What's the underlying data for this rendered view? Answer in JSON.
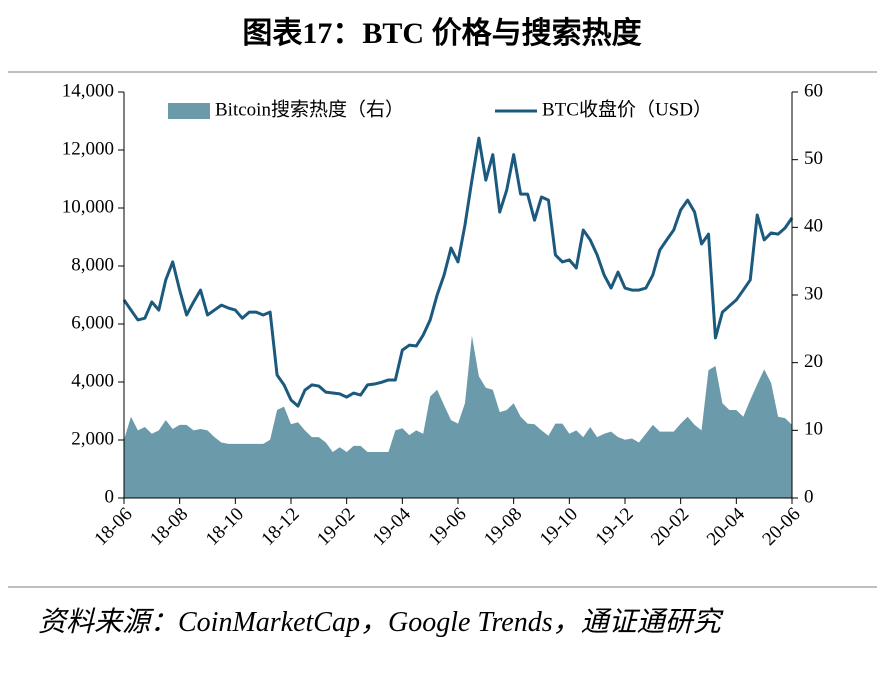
{
  "chart_data": {
    "type": "line_area",
    "title": "图表17：BTC 价格与搜索热度",
    "source": "资料来源：CoinMarketCap，Google Trends，通证通研究",
    "categories": [
      "18-06",
      null,
      null,
      null,
      null,
      null,
      null,
      null,
      "18-08",
      null,
      null,
      null,
      null,
      null,
      null,
      null,
      "18-10",
      null,
      null,
      null,
      null,
      null,
      null,
      null,
      "18-12",
      null,
      null,
      null,
      null,
      null,
      null,
      null,
      "19-02",
      null,
      null,
      null,
      null,
      null,
      null,
      null,
      "19-04",
      null,
      null,
      null,
      null,
      null,
      null,
      null,
      "19-06",
      null,
      null,
      null,
      null,
      null,
      null,
      null,
      "19-08",
      null,
      null,
      null,
      null,
      null,
      null,
      null,
      "19-10",
      null,
      null,
      null,
      null,
      null,
      null,
      null,
      "19-12",
      null,
      null,
      null,
      null,
      null,
      null,
      null,
      "20-02",
      null,
      null,
      null,
      null,
      null,
      null,
      null,
      "20-04",
      null,
      null,
      null,
      null,
      null,
      null,
      null,
      "20-06"
    ],
    "series": [
      {
        "name": "Bitcoin搜索热度（右）",
        "type": "area",
        "axis": "y2",
        "color": "#6b9aab",
        "values": [
          8.6,
          12,
          10,
          10.5,
          9.5,
          10,
          11.5,
          10.2,
          10.8,
          10.8,
          10,
          10.2,
          10,
          9,
          8.2,
          8,
          8,
          8,
          8,
          8,
          8,
          8.6,
          13,
          13.5,
          10.9,
          11.2,
          10,
          9,
          9,
          8.2,
          6.8,
          7.5,
          6.8,
          7.7,
          7.7,
          6.8,
          6.8,
          6.8,
          6.8,
          10,
          10.3,
          9.3,
          10,
          9.5,
          15,
          16,
          13.7,
          11.5,
          11,
          14,
          24,
          18,
          16.3,
          16,
          12.7,
          13,
          14,
          12,
          11,
          10.9,
          10,
          9.2,
          11,
          11,
          9.5,
          10,
          9,
          10.5,
          9,
          9.5,
          9.8,
          9,
          8.6,
          8.8,
          8.2,
          9.5,
          10.8,
          9.8,
          9.8,
          9.8,
          11,
          12,
          10.8,
          10,
          18.9,
          19.5,
          14,
          13,
          13,
          12,
          14.5,
          16.8,
          19,
          17,
          12,
          11.8,
          10.8
        ]
      },
      {
        "name": "BTC收盘价（USD）",
        "type": "line",
        "axis": "y",
        "color": "#1b5a7e",
        "values": [
          6830,
          6480,
          6140,
          6200,
          6760,
          6480,
          7520,
          8140,
          7170,
          6310,
          6760,
          7170,
          6310,
          6480,
          6650,
          6550,
          6480,
          6200,
          6410,
          6410,
          6310,
          6410,
          4240,
          3900,
          3380,
          3170,
          3720,
          3900,
          3860,
          3650,
          3620,
          3590,
          3480,
          3620,
          3550,
          3900,
          3930,
          3990,
          4070,
          4070,
          5100,
          5270,
          5240,
          5620,
          6140,
          7000,
          7690,
          8620,
          8140,
          9410,
          10960,
          12410,
          10960,
          11840,
          9860,
          10620,
          11840,
          10480,
          10480,
          9580,
          10380,
          10270,
          8380,
          8140,
          8210,
          7930,
          9240,
          8900,
          8380,
          7690,
          7240,
          7790,
          7240,
          7170,
          7170,
          7240,
          7690,
          8550,
          8900,
          9240,
          9930,
          10270,
          9860,
          8760,
          9100,
          5520,
          6410,
          6620,
          6830,
          7170,
          7520,
          9760,
          8900,
          9140,
          9100,
          9310,
          9660
        ]
      }
    ],
    "ylim": [
      0,
      14000
    ],
    "yticks": [
      0,
      {
        "value": 2000,
        "label": "2,000"
      },
      {
        "value": 4000,
        "label": "4,000"
      },
      {
        "value": 6000,
        "label": "6,000"
      },
      {
        "value": 8000,
        "label": "8,000"
      },
      {
        "value": 10000,
        "label": "10,000"
      },
      {
        "value": 12000,
        "label": "12,000"
      },
      {
        "value": 14000,
        "label": "14,000"
      }
    ],
    "y2lim": [
      0,
      60
    ],
    "y2ticks": [
      0,
      10,
      20,
      30,
      40,
      50,
      60
    ],
    "legend": "top"
  }
}
